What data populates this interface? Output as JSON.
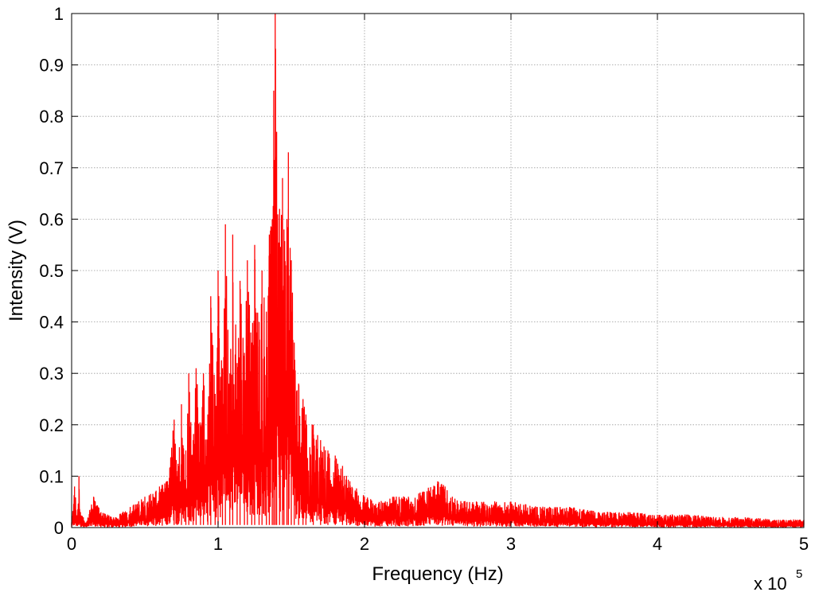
{
  "chart_data": {
    "type": "line",
    "title": "",
    "xlabel": "Frequency (Hz)",
    "ylabel": "Intensity (V)",
    "x_exponent_prefix": "x 10",
    "x_exponent_power": "5",
    "xlim": [
      0,
      5
    ],
    "ylim": [
      0,
      1
    ],
    "x_ticks": [
      0,
      1,
      2,
      3,
      4,
      5
    ],
    "y_ticks": [
      0,
      0.1,
      0.2,
      0.3,
      0.4,
      0.5,
      0.6,
      0.7,
      0.8,
      0.9,
      1
    ],
    "x_tick_labels": [
      "0",
      "1",
      "2",
      "3",
      "4",
      "5"
    ],
    "y_tick_labels": [
      "0",
      "0.1",
      "0.2",
      "0.3",
      "0.4",
      "0.5",
      "0.6",
      "0.7",
      "0.8",
      "0.9",
      "1"
    ],
    "grid": true,
    "color": "#ff0000",
    "series": [
      {
        "x": [
          0,
          0.02,
          0.04,
          0.05,
          0.06,
          0.08,
          0.1,
          0.15,
          0.2,
          0.3,
          0.4,
          0.5,
          0.6,
          0.65,
          0.7,
          0.72,
          0.75,
          0.78,
          0.8,
          0.83,
          0.85,
          0.88,
          0.9,
          0.93,
          0.95,
          0.98,
          1.0,
          1.03,
          1.05,
          1.08,
          1.1,
          1.13,
          1.15,
          1.18,
          1.2,
          1.23,
          1.25,
          1.28,
          1.3,
          1.33,
          1.35,
          1.37,
          1.38,
          1.39,
          1.4,
          1.42,
          1.44,
          1.45,
          1.47,
          1.48,
          1.5,
          1.52,
          1.55,
          1.58,
          1.6,
          1.65,
          1.7,
          1.75,
          1.8,
          1.85,
          1.9,
          2.0,
          2.1,
          2.2,
          2.3,
          2.4,
          2.5,
          2.55,
          2.6,
          2.7,
          2.8,
          2.9,
          3.0,
          3.2,
          3.4,
          3.6,
          3.8,
          4.0,
          4.2,
          4.4,
          4.6,
          4.8,
          5.0
        ],
        "y": [
          0.01,
          0.08,
          0.02,
          0.1,
          0.03,
          0.02,
          0.01,
          0.06,
          0.03,
          0.02,
          0.04,
          0.06,
          0.08,
          0.09,
          0.21,
          0.1,
          0.24,
          0.15,
          0.3,
          0.17,
          0.31,
          0.2,
          0.3,
          0.22,
          0.45,
          0.26,
          0.5,
          0.31,
          0.59,
          0.3,
          0.57,
          0.32,
          0.48,
          0.34,
          0.52,
          0.36,
          0.55,
          0.4,
          0.5,
          0.42,
          0.57,
          0.6,
          0.85,
          1.0,
          0.77,
          0.62,
          0.68,
          0.58,
          0.6,
          0.73,
          0.52,
          0.36,
          0.28,
          0.25,
          0.22,
          0.2,
          0.17,
          0.15,
          0.14,
          0.12,
          0.09,
          0.06,
          0.05,
          0.06,
          0.06,
          0.07,
          0.09,
          0.08,
          0.06,
          0.05,
          0.05,
          0.05,
          0.05,
          0.04,
          0.04,
          0.03,
          0.03,
          0.025,
          0.025,
          0.02,
          0.02,
          0.015,
          0.015
        ]
      }
    ]
  }
}
